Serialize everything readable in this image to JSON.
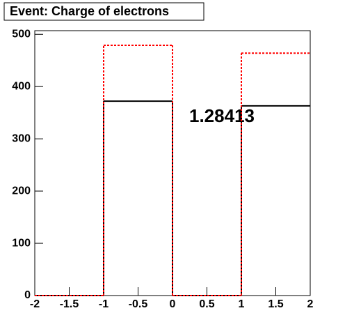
{
  "chart_data": {
    "type": "histogram",
    "title": "Event: Charge of electrons",
    "annotation": "1.28413",
    "bins": [
      -2,
      -1,
      0,
      1,
      2
    ],
    "series": [
      {
        "color": "#000000",
        "line_style": "solid",
        "values": [
          0,
          372,
          0,
          363
        ]
      },
      {
        "color": "#ff0000",
        "line_style": "dotted",
        "values": [
          0,
          479,
          0,
          464
        ]
      }
    ],
    "xlim": [
      -2,
      2
    ],
    "xticks": [
      -2,
      -1.5,
      -1,
      -0.5,
      0,
      0.5,
      1,
      1.5,
      2
    ],
    "ylim": [
      0,
      507
    ],
    "yticks": [
      0,
      100,
      200,
      300,
      400,
      500
    ]
  }
}
